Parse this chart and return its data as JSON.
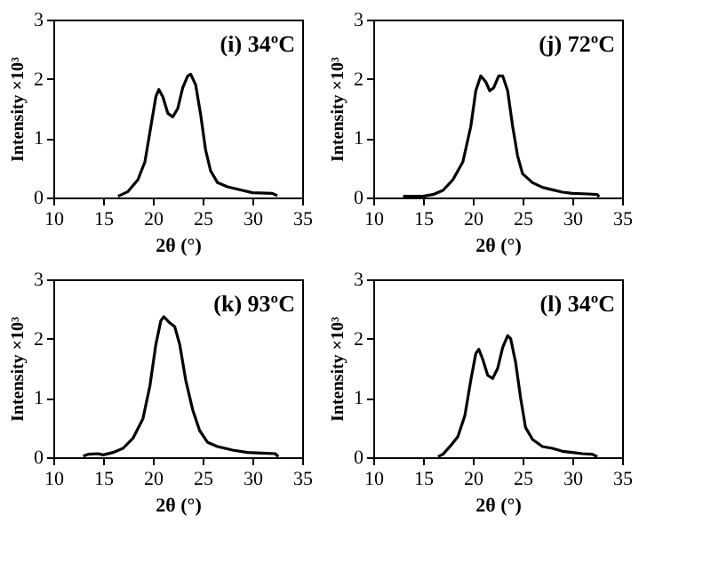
{
  "chart_data": [
    {
      "type": "line",
      "xlabel": "2θ (°)",
      "ylabel": "Intensity ×10³",
      "annotations": [
        "(i) 34ºC"
      ],
      "xlim": [
        10,
        35
      ],
      "ylim": [
        0,
        3
      ],
      "xticks": [
        10,
        15,
        20,
        25,
        30,
        35
      ],
      "yticks": [
        0,
        1,
        2,
        3
      ],
      "grid": false,
      "line_style": "solid",
      "series": [
        {
          "color": "#000000",
          "x": [
            16.5,
            17.5,
            18.5,
            19.2,
            19.8,
            20.3,
            20.6,
            21,
            21.5,
            22,
            22.5,
            23,
            23.5,
            23.8,
            24.3,
            24.8,
            25.3,
            25.8,
            26.5,
            27.5,
            29,
            30,
            32,
            32.5
          ],
          "values": [
            0.02,
            0.1,
            0.3,
            0.6,
            1.2,
            1.7,
            1.82,
            1.7,
            1.42,
            1.36,
            1.5,
            1.85,
            2.05,
            2.08,
            1.9,
            1.4,
            0.8,
            0.45,
            0.25,
            0.18,
            0.12,
            0.08,
            0.07,
            0.03
          ]
        }
      ]
    },
    {
      "type": "line",
      "xlabel": "2θ (°)",
      "ylabel": "Intensity ×10³",
      "annotations": [
        "(j) 72ºC"
      ],
      "xlim": [
        10,
        35
      ],
      "ylim": [
        0,
        3
      ],
      "xticks": [
        10,
        15,
        20,
        25,
        30,
        35
      ],
      "yticks": [
        0,
        1,
        2,
        3
      ],
      "grid": false,
      "line_style": "solid",
      "series": [
        {
          "color": "#000000",
          "x": [
            13,
            15,
            16,
            17,
            18,
            19,
            19.8,
            20.3,
            20.8,
            21.3,
            21.7,
            22.1,
            22.6,
            23,
            23.5,
            24,
            24.5,
            25,
            26,
            27,
            28,
            29,
            30,
            31.5,
            32.5,
            32.7
          ],
          "values": [
            0.02,
            0.02,
            0.05,
            0.12,
            0.3,
            0.6,
            1.2,
            1.8,
            2.05,
            1.95,
            1.8,
            1.85,
            2.05,
            2.05,
            1.8,
            1.2,
            0.7,
            0.4,
            0.25,
            0.17,
            0.13,
            0.09,
            0.07,
            0.06,
            0.05,
            0.01
          ]
        }
      ]
    },
    {
      "type": "line",
      "xlabel": "2θ (°)",
      "ylabel": "Intensity ×10³",
      "annotations": [
        "(k) 93ºC"
      ],
      "xlim": [
        10,
        35
      ],
      "ylim": [
        0,
        3
      ],
      "xticks": [
        10,
        15,
        20,
        25,
        30,
        35
      ],
      "yticks": [
        0,
        1,
        2,
        3
      ],
      "grid": false,
      "line_style": "solid",
      "series": [
        {
          "color": "#000000",
          "x": [
            13,
            13.5,
            14.5,
            15,
            16,
            17,
            18,
            19,
            19.7,
            20.3,
            20.8,
            21.1,
            21.6,
            22.2,
            22.7,
            23.3,
            24,
            24.7,
            25.5,
            26.5,
            28,
            29.5,
            31,
            32.3,
            32.6
          ],
          "values": [
            0.02,
            0.05,
            0.06,
            0.04,
            0.08,
            0.15,
            0.32,
            0.65,
            1.2,
            1.9,
            2.3,
            2.37,
            2.28,
            2.2,
            1.9,
            1.3,
            0.8,
            0.45,
            0.25,
            0.18,
            0.12,
            0.08,
            0.07,
            0.06,
            0.01
          ]
        }
      ]
    },
    {
      "type": "line",
      "xlabel": "2θ (°)",
      "ylabel": "Intensity ×10³",
      "annotations": [
        "(l) 34ºC"
      ],
      "xlim": [
        10,
        35
      ],
      "ylim": [
        0,
        3
      ],
      "xticks": [
        10,
        15,
        20,
        25,
        30,
        35
      ],
      "yticks": [
        0,
        1,
        2,
        3
      ],
      "grid": false,
      "line_style": "solid",
      "series": [
        {
          "color": "#000000",
          "x": [
            16.5,
            17,
            17.8,
            18.5,
            19.2,
            19.8,
            20.3,
            20.6,
            21,
            21.5,
            22,
            22.5,
            23,
            23.5,
            23.8,
            24.3,
            24.8,
            25.3,
            26,
            27,
            28,
            29,
            30,
            31,
            32,
            32.5
          ],
          "values": [
            0.01,
            0.05,
            0.2,
            0.35,
            0.7,
            1.3,
            1.75,
            1.82,
            1.65,
            1.38,
            1.33,
            1.5,
            1.85,
            2.05,
            2.0,
            1.6,
            1.0,
            0.5,
            0.3,
            0.18,
            0.15,
            0.1,
            0.08,
            0.06,
            0.05,
            0.01
          ]
        }
      ]
    }
  ]
}
